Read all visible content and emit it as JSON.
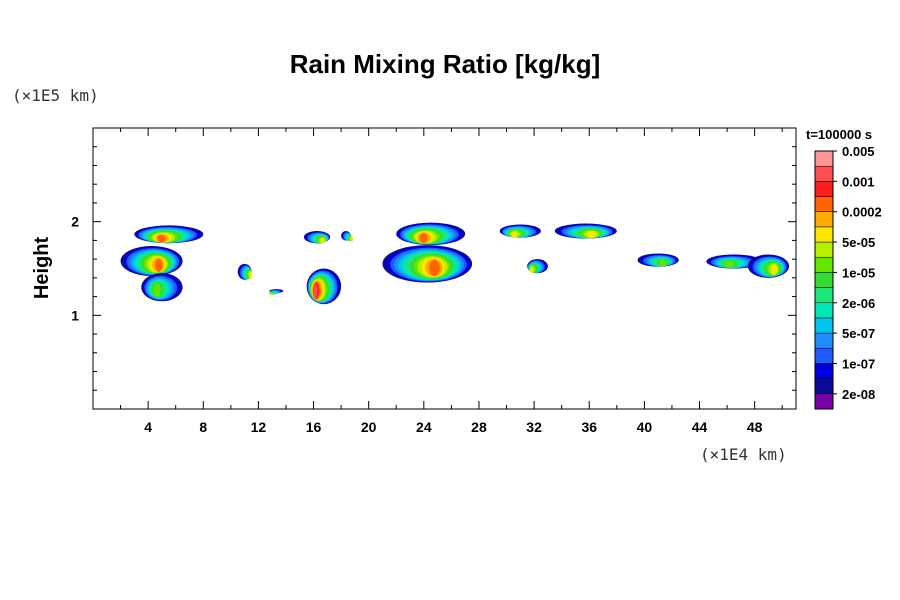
{
  "chart_data": {
    "type": "heatmap",
    "title": "Rain Mixing Ratio [kg/kg]",
    "xlabel": "",
    "ylabel": "Height",
    "x_unit_label": "(×1E4 km)",
    "y_unit_label": "(×1E5 km)",
    "time_label": "t=100000 s",
    "xlim": [
      0,
      51
    ],
    "ylim": [
      0,
      3
    ],
    "x_ticks": [
      4,
      8,
      12,
      16,
      20,
      24,
      28,
      32,
      36,
      40,
      44,
      48
    ],
    "y_ticks": [
      1,
      2
    ],
    "colorbar": {
      "colors": [
        "#7a00a8",
        "#0a0a96",
        "#0000dc",
        "#1f5aff",
        "#1e8cff",
        "#00c4f0",
        "#00e6b4",
        "#1ee678",
        "#32dc32",
        "#64e600",
        "#b4f000",
        "#ffe600",
        "#ffaa00",
        "#ff6400",
        "#ff1e1e",
        "#ff5050",
        "#ff9696"
      ],
      "labels": [
        "2e-08",
        "1e-07",
        "5e-07",
        "2e-06",
        "1e-05",
        "5e-05",
        "0.0002",
        "0.001",
        "0.005"
      ]
    },
    "rain_regions": [
      {
        "x_range": [
          3.0,
          8.0
        ],
        "y_range": [
          1.77,
          1.96
        ],
        "peak": "0.0002"
      },
      {
        "x_range": [
          2.0,
          6.5
        ],
        "y_range": [
          1.42,
          1.74
        ],
        "peak": "0.0002"
      },
      {
        "x_range": [
          3.5,
          6.5
        ],
        "y_range": [
          1.15,
          1.45
        ],
        "peak": "1e-05"
      },
      {
        "x_range": [
          10.5,
          11.5
        ],
        "y_range": [
          1.38,
          1.55
        ],
        "peak": "5e-05"
      },
      {
        "x_range": [
          12.8,
          13.8
        ],
        "y_range": [
          1.24,
          1.28
        ],
        "peak": "5e-05"
      },
      {
        "x_range": [
          15.3,
          17.2
        ],
        "y_range": [
          1.77,
          1.9
        ],
        "peak": "5e-05"
      },
      {
        "x_range": [
          15.5,
          18.0
        ],
        "y_range": [
          1.12,
          1.5
        ],
        "peak": "0.001"
      },
      {
        "x_range": [
          18.0,
          18.7
        ],
        "y_range": [
          1.8,
          1.9
        ],
        "peak": "5e-05"
      },
      {
        "x_range": [
          22.0,
          27.0
        ],
        "y_range": [
          1.75,
          1.99
        ],
        "peak": "0.0002"
      },
      {
        "x_range": [
          21.0,
          27.5
        ],
        "y_range": [
          1.35,
          1.75
        ],
        "peak": "0.0002"
      },
      {
        "x_range": [
          29.5,
          32.5
        ],
        "y_range": [
          1.83,
          1.97
        ],
        "peak": "5e-05"
      },
      {
        "x_range": [
          33.5,
          38.0
        ],
        "y_range": [
          1.82,
          1.98
        ],
        "peak": "5e-05"
      },
      {
        "x_range": [
          31.5,
          33.0
        ],
        "y_range": [
          1.45,
          1.6
        ],
        "peak": "5e-05"
      },
      {
        "x_range": [
          39.5,
          42.5
        ],
        "y_range": [
          1.52,
          1.66
        ],
        "peak": "1e-05"
      },
      {
        "x_range": [
          44.5,
          48.5
        ],
        "y_range": [
          1.5,
          1.65
        ],
        "peak": "1e-05"
      },
      {
        "x_range": [
          47.5,
          50.5
        ],
        "y_range": [
          1.4,
          1.65
        ],
        "peak": "5e-05"
      }
    ]
  },
  "colors": {
    "axis": "#000000",
    "background": "#ffffff"
  }
}
